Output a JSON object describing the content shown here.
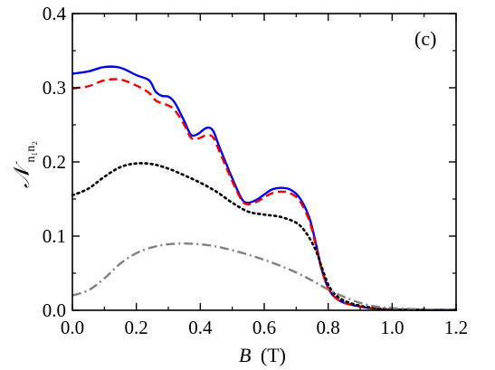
{
  "chart_data": {
    "type": "line",
    "panel_label": "(c)",
    "xlabel": {
      "symbol": "B",
      "unit": "(T)"
    },
    "ylabel": {
      "symbol": "𝒩",
      "subscript": "n₁n₂"
    },
    "xlim": [
      0,
      1.2
    ],
    "ylim": [
      0,
      0.4
    ],
    "xticks": [
      0.0,
      0.2,
      0.4,
      0.6,
      0.8,
      1.0,
      1.2
    ],
    "xtick_labels": [
      "0.0",
      "0.2",
      "0.4",
      "0.6",
      "0.8",
      "1.0",
      "1.2"
    ],
    "yticks": [
      0.0,
      0.1,
      0.2,
      0.3,
      0.4
    ],
    "ytick_labels": [
      "0.0",
      "0.1",
      "0.2",
      "0.3",
      "0.4"
    ],
    "grid": false,
    "series": [
      {
        "style": "solid",
        "color": "#0000ee",
        "x": [
          0,
          0.05,
          0.1,
          0.15,
          0.2,
          0.24,
          0.26,
          0.28,
          0.3,
          0.32,
          0.35,
          0.37,
          0.39,
          0.42,
          0.44,
          0.46,
          0.5,
          0.53,
          0.55,
          0.58,
          0.62,
          0.65,
          0.68,
          0.71,
          0.74,
          0.76,
          0.78,
          0.8,
          0.82,
          0.85,
          0.9,
          0.95,
          1.0,
          1.05,
          1.1,
          1.2
        ],
        "y": [
          0.319,
          0.322,
          0.328,
          0.327,
          0.317,
          0.31,
          0.295,
          0.289,
          0.288,
          0.28,
          0.255,
          0.237,
          0.237,
          0.246,
          0.242,
          0.22,
          0.178,
          0.15,
          0.145,
          0.15,
          0.162,
          0.165,
          0.163,
          0.152,
          0.126,
          0.093,
          0.055,
          0.03,
          0.018,
          0.01,
          0.005,
          0.002,
          0.001,
          0.001,
          0.0005,
          0.0005
        ]
      },
      {
        "style": "dashed",
        "color": "#ee0000",
        "x": [
          0,
          0.05,
          0.1,
          0.15,
          0.2,
          0.24,
          0.26,
          0.28,
          0.3,
          0.32,
          0.35,
          0.37,
          0.39,
          0.42,
          0.44,
          0.46,
          0.5,
          0.53,
          0.55,
          0.58,
          0.62,
          0.65,
          0.68,
          0.71,
          0.74,
          0.76,
          0.78,
          0.8,
          0.82,
          0.85,
          0.9,
          0.95,
          1.0,
          1.05,
          1.1,
          1.2
        ],
        "y": [
          0.299,
          0.302,
          0.31,
          0.311,
          0.303,
          0.293,
          0.283,
          0.279,
          0.276,
          0.27,
          0.25,
          0.233,
          0.231,
          0.236,
          0.233,
          0.214,
          0.174,
          0.148,
          0.143,
          0.147,
          0.157,
          0.16,
          0.158,
          0.148,
          0.122,
          0.09,
          0.054,
          0.03,
          0.018,
          0.01,
          0.005,
          0.002,
          0.001,
          0.001,
          0.0005,
          0.0005
        ]
      },
      {
        "style": "dotted",
        "color": "#000000",
        "x": [
          0,
          0.05,
          0.1,
          0.15,
          0.2,
          0.25,
          0.3,
          0.35,
          0.4,
          0.45,
          0.5,
          0.55,
          0.6,
          0.65,
          0.7,
          0.73,
          0.76,
          0.78,
          0.8,
          0.82,
          0.85,
          0.9,
          0.95,
          1.0,
          1.1,
          1.2
        ],
        "y": [
          0.155,
          0.164,
          0.18,
          0.193,
          0.198,
          0.197,
          0.191,
          0.182,
          0.172,
          0.16,
          0.145,
          0.133,
          0.129,
          0.126,
          0.118,
          0.105,
          0.082,
          0.058,
          0.035,
          0.022,
          0.013,
          0.006,
          0.003,
          0.001,
          0.0005,
          0.0005
        ]
      },
      {
        "style": "dashdot",
        "color": "#808080",
        "x": [
          0,
          0.05,
          0.1,
          0.15,
          0.2,
          0.25,
          0.3,
          0.35,
          0.4,
          0.45,
          0.5,
          0.55,
          0.6,
          0.65,
          0.7,
          0.75,
          0.8,
          0.85,
          0.9,
          0.95,
          1.0,
          1.05,
          1.1,
          1.15,
          1.2
        ],
        "y": [
          0.02,
          0.027,
          0.043,
          0.063,
          0.077,
          0.085,
          0.089,
          0.09,
          0.089,
          0.086,
          0.081,
          0.075,
          0.068,
          0.06,
          0.051,
          0.04,
          0.028,
          0.018,
          0.01,
          0.005,
          0.003,
          0.002,
          0.001,
          0.0005,
          0.0005
        ]
      }
    ]
  }
}
